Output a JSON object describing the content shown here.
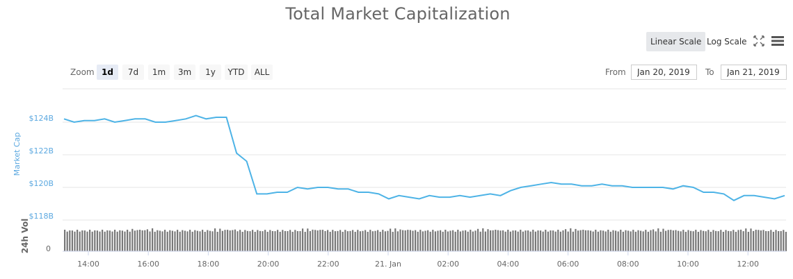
{
  "title": "Total Market Capitalization",
  "toolbar": {
    "linear_scale": "Linear Scale",
    "log_scale": "Log Scale",
    "fullscreen_icon": "fullscreen-icon",
    "menu_icon": "hamburger-menu-icon"
  },
  "range_selector": {
    "zoom_label": "Zoom",
    "buttons": [
      "1d",
      "7d",
      "1m",
      "3m",
      "1y",
      "YTD",
      "ALL"
    ],
    "selected": "1d",
    "from_label": "From",
    "from_value": "Jan 20, 2019",
    "to_label": "To",
    "to_value": "Jan 21, 2019"
  },
  "colors": {
    "line": "#4db3e6",
    "axis_label": "#5ba8e0",
    "volume_bars": "#777777",
    "grid": "#e6e6e6"
  },
  "chart_data": {
    "type": "line",
    "title": "Total Market Capitalization",
    "ylabel": "Market Cap",
    "yticks": [
      "$124B",
      "$122B",
      "$120B",
      "$118B"
    ],
    "ylim": [
      118,
      125
    ],
    "xticks": [
      "14:00",
      "16:00",
      "18:00",
      "20:00",
      "22:00",
      "21. Jan",
      "02:00",
      "04:00",
      "06:00",
      "08:00",
      "10:00",
      "12:00"
    ],
    "grid": true,
    "series": [
      {
        "name": "Market Cap ($B)",
        "x": [
          "13:20",
          "13:40",
          "14:00",
          "14:20",
          "14:40",
          "15:00",
          "15:20",
          "15:40",
          "16:00",
          "16:20",
          "16:40",
          "17:00",
          "17:20",
          "17:40",
          "18:00",
          "18:20",
          "18:40",
          "19:00",
          "19:20",
          "19:40",
          "20:00",
          "20:20",
          "20:40",
          "21:00",
          "21:20",
          "21:40",
          "22:00",
          "22:20",
          "22:40",
          "23:00",
          "23:20",
          "23:40",
          "00:00",
          "00:20",
          "00:40",
          "01:00",
          "01:20",
          "01:40",
          "02:00",
          "02:20",
          "02:40",
          "03:00",
          "03:20",
          "03:40",
          "04:00",
          "04:20",
          "04:40",
          "05:00",
          "05:20",
          "05:40",
          "06:00",
          "06:20",
          "06:40",
          "07:00",
          "07:20",
          "07:40",
          "08:00",
          "08:20",
          "08:40",
          "09:00",
          "09:20",
          "09:40",
          "10:00",
          "10:20",
          "10:40",
          "11:00",
          "11:20",
          "11:40",
          "12:00",
          "12:20",
          "12:40",
          "13:00"
        ],
        "values": [
          124.2,
          124.0,
          124.1,
          124.1,
          124.2,
          124.0,
          124.1,
          124.2,
          124.2,
          124.0,
          124.0,
          124.1,
          124.2,
          124.4,
          124.2,
          124.3,
          124.3,
          122.1,
          121.6,
          119.6,
          119.6,
          119.7,
          119.7,
          120.0,
          119.9,
          120.0,
          120.0,
          119.9,
          119.9,
          119.7,
          119.7,
          119.6,
          119.3,
          119.5,
          119.4,
          119.3,
          119.5,
          119.4,
          119.4,
          119.5,
          119.4,
          119.5,
          119.6,
          119.5,
          119.8,
          120.0,
          120.1,
          120.2,
          120.3,
          120.2,
          120.2,
          120.1,
          120.1,
          120.2,
          120.1,
          120.1,
          120.0,
          120.0,
          120.0,
          120.0,
          119.9,
          120.1,
          120.0,
          119.7,
          119.7,
          119.6,
          119.2,
          119.5,
          119.5,
          119.4,
          119.3,
          119.5
        ]
      },
      {
        "name": "24h Vol",
        "axis_label": "24h Vol",
        "yticks": [
          "0"
        ],
        "note": "roughly constant volume bars, ~1 bar per 5 minutes"
      }
    ]
  }
}
